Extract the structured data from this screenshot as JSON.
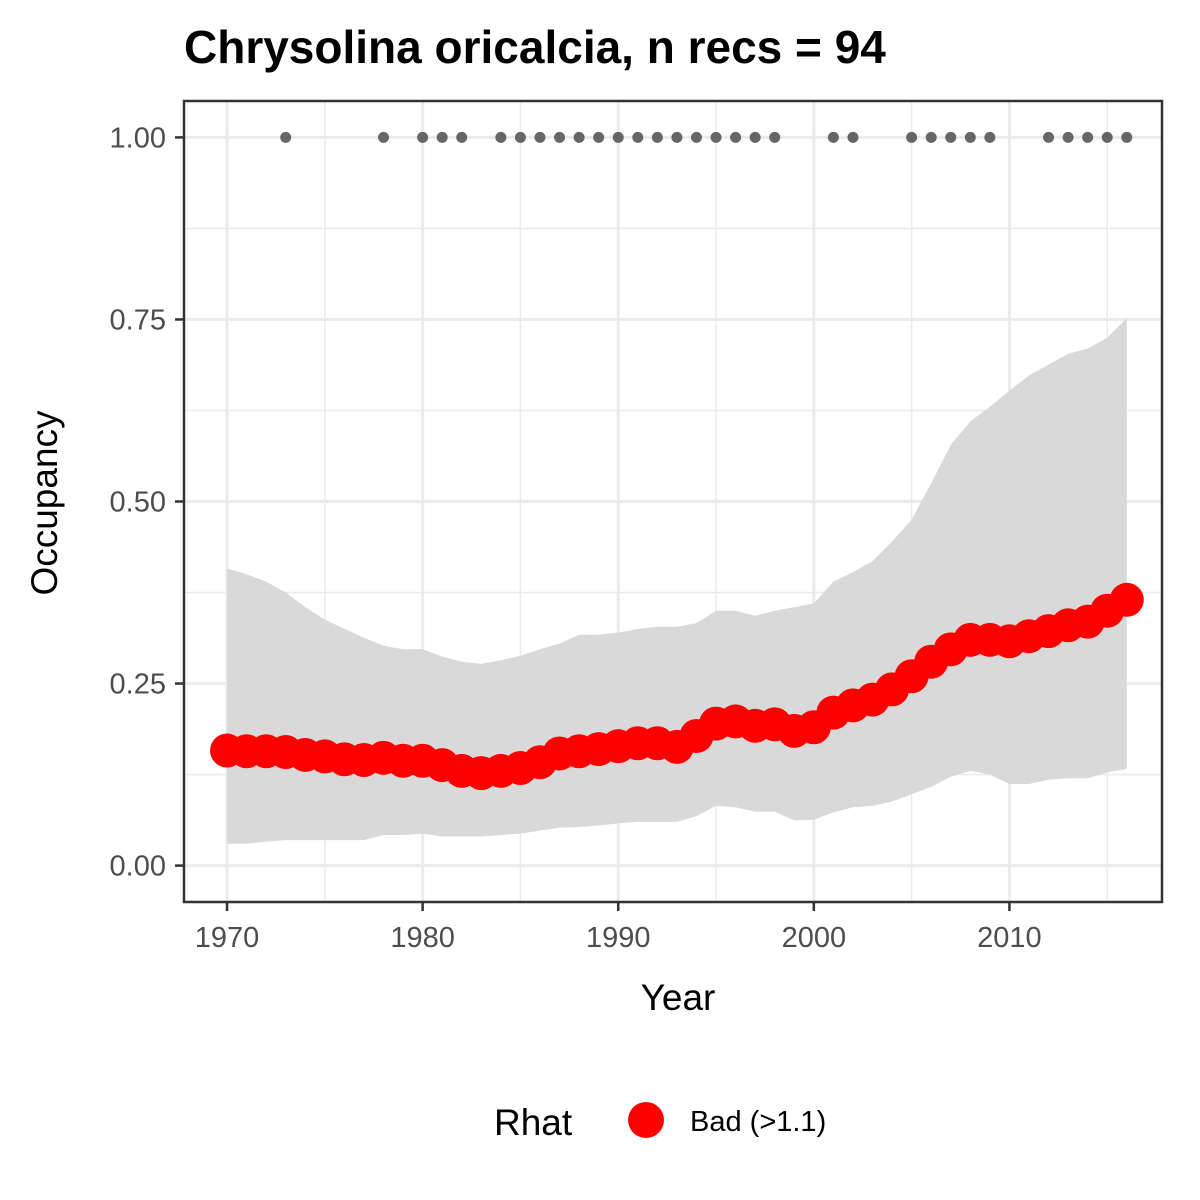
{
  "chart_data": {
    "type": "line",
    "title": "Chrysolina oricalcia, n recs = 94",
    "xlabel": "Year",
    "ylabel": "Occupancy",
    "xlim": [
      1967.8,
      2017.8
    ],
    "ylim": [
      -0.05,
      1.05
    ],
    "x_ticks": [
      1970,
      1980,
      1990,
      2000,
      2010
    ],
    "y_ticks": [
      0.0,
      0.25,
      0.5,
      0.75,
      1.0
    ],
    "y_tick_labels": [
      "0.00",
      "0.25",
      "0.50",
      "0.75",
      "1.00"
    ],
    "grid": true,
    "x": [
      1970,
      1971,
      1972,
      1973,
      1974,
      1975,
      1976,
      1977,
      1978,
      1979,
      1980,
      1981,
      1982,
      1983,
      1984,
      1985,
      1986,
      1987,
      1988,
      1989,
      1990,
      1991,
      1992,
      1993,
      1994,
      1995,
      1996,
      1997,
      1998,
      1999,
      2000,
      2001,
      2002,
      2003,
      2004,
      2005,
      2006,
      2007,
      2008,
      2009,
      2010,
      2011,
      2012,
      2013,
      2014,
      2015,
      2016
    ],
    "series": [
      {
        "name": "Occupancy",
        "values": [
          0.158,
          0.157,
          0.157,
          0.156,
          0.152,
          0.15,
          0.146,
          0.145,
          0.148,
          0.144,
          0.144,
          0.138,
          0.13,
          0.127,
          0.13,
          0.134,
          0.142,
          0.154,
          0.157,
          0.16,
          0.164,
          0.168,
          0.168,
          0.163,
          0.178,
          0.195,
          0.198,
          0.192,
          0.194,
          0.185,
          0.19,
          0.21,
          0.22,
          0.228,
          0.242,
          0.26,
          0.28,
          0.297,
          0.31,
          0.31,
          0.308,
          0.315,
          0.322,
          0.33,
          0.335,
          0.35,
          0.365
        ],
        "lower": [
          0.03,
          0.03,
          0.033,
          0.035,
          0.035,
          0.035,
          0.035,
          0.035,
          0.042,
          0.042,
          0.044,
          0.04,
          0.04,
          0.04,
          0.042,
          0.044,
          0.048,
          0.052,
          0.053,
          0.055,
          0.058,
          0.06,
          0.06,
          0.06,
          0.068,
          0.082,
          0.08,
          0.074,
          0.074,
          0.062,
          0.063,
          0.073,
          0.08,
          0.082,
          0.088,
          0.098,
          0.108,
          0.122,
          0.13,
          0.125,
          0.112,
          0.112,
          0.118,
          0.12,
          0.12,
          0.128,
          0.133
        ],
        "upper": [
          0.408,
          0.4,
          0.39,
          0.375,
          0.355,
          0.338,
          0.325,
          0.313,
          0.302,
          0.297,
          0.297,
          0.287,
          0.28,
          0.277,
          0.282,
          0.288,
          0.297,
          0.305,
          0.317,
          0.317,
          0.32,
          0.325,
          0.328,
          0.328,
          0.333,
          0.35,
          0.35,
          0.343,
          0.35,
          0.355,
          0.36,
          0.39,
          0.403,
          0.418,
          0.445,
          0.475,
          0.525,
          0.578,
          0.61,
          0.63,
          0.652,
          0.673,
          0.688,
          0.703,
          0.71,
          0.725,
          0.752
        ]
      }
    ],
    "records_y": 1.0,
    "record_years": [
      1973,
      1978,
      1980,
      1981,
      1982,
      1984,
      1985,
      1986,
      1987,
      1988,
      1989,
      1990,
      1991,
      1992,
      1993,
      1994,
      1995,
      1996,
      1997,
      1998,
      2001,
      2002,
      2005,
      2006,
      2007,
      2008,
      2009,
      2012,
      2013,
      2014,
      2015,
      2016
    ],
    "legend": {
      "title": "Rhat",
      "position": "bottom",
      "entries": [
        {
          "label": "Bad (>1.1)",
          "color": "#ff0000"
        }
      ]
    },
    "colors": {
      "line_points": "#ff0000",
      "ribbon": "#d9d9d9",
      "record_points": "#666666",
      "grid": "#ebebeb",
      "panel_border": "#333333"
    }
  }
}
